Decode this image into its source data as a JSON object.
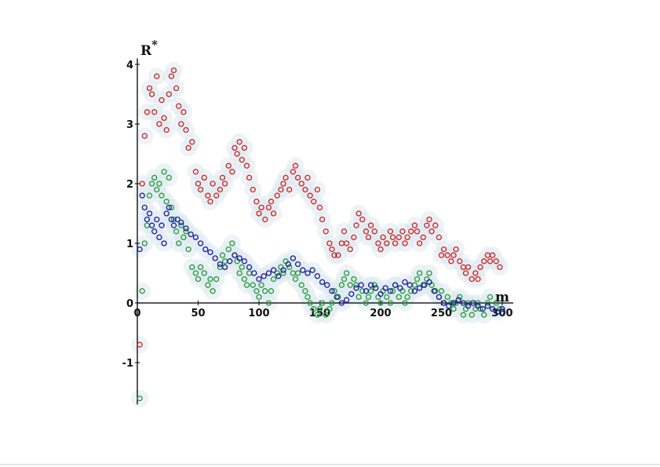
{
  "chart_data": {
    "type": "scatter",
    "title": "",
    "xlabel": "m",
    "ylabel": "R*",
    "xlim": [
      0,
      300
    ],
    "ylim": [
      -1.7,
      4.1
    ],
    "x_ticks": [
      0,
      50,
      100,
      150,
      200,
      250,
      300
    ],
    "x_tick_labels": [
      "0",
      "50",
      "100",
      "150",
      "200",
      "250",
      "300"
    ],
    "y_ticks": [
      -1,
      0,
      1,
      2,
      3,
      4
    ],
    "y_tick_labels": [
      "-1",
      "0",
      "1",
      "2",
      "3",
      "4"
    ],
    "grid": false,
    "legend": "none",
    "series": [
      {
        "color": "#cc2222",
        "x": [
          2,
          4,
          6,
          8,
          10,
          12,
          14,
          16,
          18,
          20,
          22,
          24,
          26,
          28,
          30,
          32,
          34,
          36,
          38,
          40,
          42,
          45,
          48,
          50,
          52,
          55,
          58,
          60,
          62,
          65,
          68,
          70,
          72,
          75,
          78,
          80,
          82,
          84,
          86,
          88,
          90,
          92,
          95,
          98,
          100,
          102,
          105,
          108,
          110,
          112,
          115,
          118,
          120,
          122,
          125,
          128,
          130,
          132,
          135,
          138,
          140,
          142,
          145,
          148,
          150,
          152,
          155,
          158,
          160,
          162,
          165,
          168,
          170,
          172,
          175,
          178,
          180,
          182,
          185,
          188,
          190,
          192,
          195,
          198,
          200,
          202,
          205,
          208,
          210,
          212,
          215,
          218,
          220,
          222,
          225,
          228,
          230,
          232,
          235,
          238,
          240,
          242,
          245,
          248,
          250,
          252,
          255,
          258,
          260,
          262,
          265,
          268,
          270,
          272,
          275,
          278,
          280,
          282,
          285,
          288,
          290,
          292,
          295,
          298
        ],
        "y": [
          -0.7,
          2.0,
          2.8,
          3.2,
          3.6,
          3.5,
          3.2,
          3.8,
          3.0,
          3.4,
          3.1,
          2.9,
          3.5,
          3.8,
          3.9,
          3.6,
          3.3,
          3.0,
          3.2,
          2.9,
          2.6,
          2.7,
          2.2,
          2.0,
          1.9,
          2.1,
          1.8,
          1.7,
          2.0,
          1.8,
          1.9,
          2.1,
          2.0,
          2.3,
          2.2,
          2.6,
          2.5,
          2.7,
          2.4,
          2.6,
          2.3,
          2.1,
          1.9,
          1.7,
          1.5,
          1.6,
          1.4,
          1.6,
          1.7,
          1.5,
          1.8,
          1.9,
          2.0,
          2.1,
          1.9,
          2.2,
          2.3,
          2.1,
          2.0,
          1.9,
          2.1,
          1.8,
          1.7,
          1.9,
          1.6,
          1.4,
          1.2,
          1.0,
          0.9,
          0.8,
          0.8,
          1.0,
          1.2,
          1.0,
          0.9,
          1.1,
          1.3,
          1.5,
          1.4,
          1.2,
          1.1,
          1.3,
          1.2,
          1.0,
          0.9,
          1.1,
          1.0,
          1.2,
          1.1,
          1.0,
          1.1,
          1.2,
          1.0,
          1.1,
          1.2,
          1.3,
          1.2,
          1.0,
          1.1,
          1.3,
          1.4,
          1.2,
          1.3,
          1.1,
          0.8,
          0.9,
          0.8,
          0.7,
          0.8,
          0.9,
          0.7,
          0.6,
          0.5,
          0.6,
          0.4,
          0.5,
          0.4,
          0.6,
          0.7,
          0.8,
          0.7,
          0.8,
          0.7,
          0.6
        ]
      },
      {
        "color": "#229933",
        "x": [
          2,
          4,
          6,
          8,
          10,
          12,
          14,
          16,
          18,
          20,
          22,
          24,
          26,
          28,
          30,
          32,
          34,
          36,
          38,
          40,
          42,
          45,
          48,
          50,
          52,
          55,
          58,
          60,
          62,
          65,
          68,
          70,
          72,
          75,
          78,
          80,
          82,
          84,
          86,
          88,
          90,
          92,
          95,
          98,
          100,
          102,
          105,
          108,
          110,
          112,
          115,
          118,
          120,
          122,
          125,
          128,
          130,
          132,
          135,
          138,
          140,
          142,
          145,
          148,
          150,
          152,
          155,
          158,
          160,
          162,
          165,
          168,
          170,
          172,
          175,
          178,
          180,
          182,
          185,
          188,
          190,
          192,
          195,
          198,
          200,
          202,
          205,
          208,
          210,
          212,
          215,
          218,
          220,
          222,
          225,
          228,
          230,
          232,
          235,
          238,
          240,
          242,
          245,
          248,
          250,
          252,
          255,
          258,
          260,
          262,
          265,
          268,
          270,
          272,
          275,
          278,
          280,
          282,
          285,
          288,
          290,
          292,
          295,
          298
        ],
        "y": [
          -1.6,
          0.2,
          1.0,
          1.3,
          1.8,
          2.0,
          2.1,
          1.9,
          2.0,
          1.8,
          2.2,
          1.7,
          2.1,
          1.6,
          1.4,
          1.2,
          1.0,
          1.3,
          1.1,
          1.2,
          0.9,
          0.6,
          0.5,
          0.4,
          0.6,
          0.5,
          0.3,
          0.4,
          0.2,
          0.4,
          0.6,
          0.8,
          0.7,
          0.9,
          1.0,
          0.8,
          0.7,
          0.5,
          0.6,
          0.4,
          0.3,
          0.5,
          0.3,
          0.2,
          0.1,
          0.3,
          0.2,
          0.0,
          0.2,
          0.4,
          0.5,
          0.6,
          0.5,
          0.7,
          0.6,
          0.5,
          0.4,
          0.5,
          0.3,
          0.2,
          0.1,
          0.0,
          -0.1,
          -0.2,
          -0.1,
          0.0,
          -0.2,
          -0.1,
          0.0,
          0.2,
          0.1,
          0.3,
          0.4,
          0.5,
          0.3,
          0.4,
          0.3,
          0.1,
          0.2,
          0.0,
          0.1,
          0.2,
          0.3,
          0.1,
          0.0,
          0.2,
          0.1,
          0.0,
          0.2,
          0.3,
          0.1,
          0.2,
          0.0,
          0.1,
          0.2,
          0.3,
          0.4,
          0.5,
          0.3,
          0.4,
          0.5,
          0.3,
          0.2,
          0.1,
          0.2,
          0.0,
          0.1,
          0.0,
          -0.1,
          0.0,
          0.1,
          -0.2,
          -0.1,
          0.0,
          -0.2,
          -0.1,
          0.0,
          -0.1,
          -0.2,
          0.0,
          0.1,
          -0.1,
          0.0,
          -0.1
        ]
      },
      {
        "color": "#1a1a99",
        "x": [
          2,
          4,
          6,
          8,
          10,
          12,
          14,
          16,
          18,
          20,
          22,
          24,
          26,
          28,
          30,
          33,
          36,
          40,
          44,
          48,
          52,
          56,
          60,
          64,
          68,
          72,
          76,
          80,
          84,
          88,
          92,
          96,
          100,
          104,
          108,
          112,
          116,
          120,
          124,
          128,
          132,
          136,
          140,
          144,
          148,
          152,
          156,
          160,
          164,
          168,
          172,
          176,
          180,
          184,
          188,
          192,
          196,
          200,
          204,
          208,
          212,
          216,
          220,
          224,
          228,
          232,
          236,
          240,
          244,
          248,
          252,
          256,
          260,
          264,
          268,
          272,
          276,
          280,
          284,
          288,
          292,
          296,
          300
        ],
        "y": [
          0.9,
          1.8,
          1.6,
          1.4,
          1.5,
          1.3,
          1.2,
          1.4,
          1.1,
          1.3,
          1.0,
          1.5,
          1.6,
          1.4,
          1.3,
          1.4,
          1.35,
          1.25,
          1.15,
          1.1,
          1.0,
          0.9,
          0.85,
          0.75,
          0.65,
          0.6,
          0.7,
          0.8,
          0.75,
          0.7,
          0.6,
          0.5,
          0.4,
          0.45,
          0.5,
          0.55,
          0.45,
          0.55,
          0.65,
          0.75,
          0.65,
          0.55,
          0.5,
          0.55,
          0.45,
          0.35,
          0.3,
          0.2,
          0.1,
          0.0,
          0.05,
          0.15,
          0.25,
          0.3,
          0.2,
          0.3,
          0.25,
          0.15,
          0.25,
          0.2,
          0.3,
          0.25,
          0.35,
          0.3,
          0.2,
          0.25,
          0.3,
          0.35,
          0.2,
          0.1,
          0.0,
          -0.05,
          0.0,
          0.05,
          0.0,
          -0.05,
          0.0,
          -0.05,
          -0.1,
          -0.05,
          -0.1,
          -0.15,
          -0.1
        ]
      }
    ]
  }
}
